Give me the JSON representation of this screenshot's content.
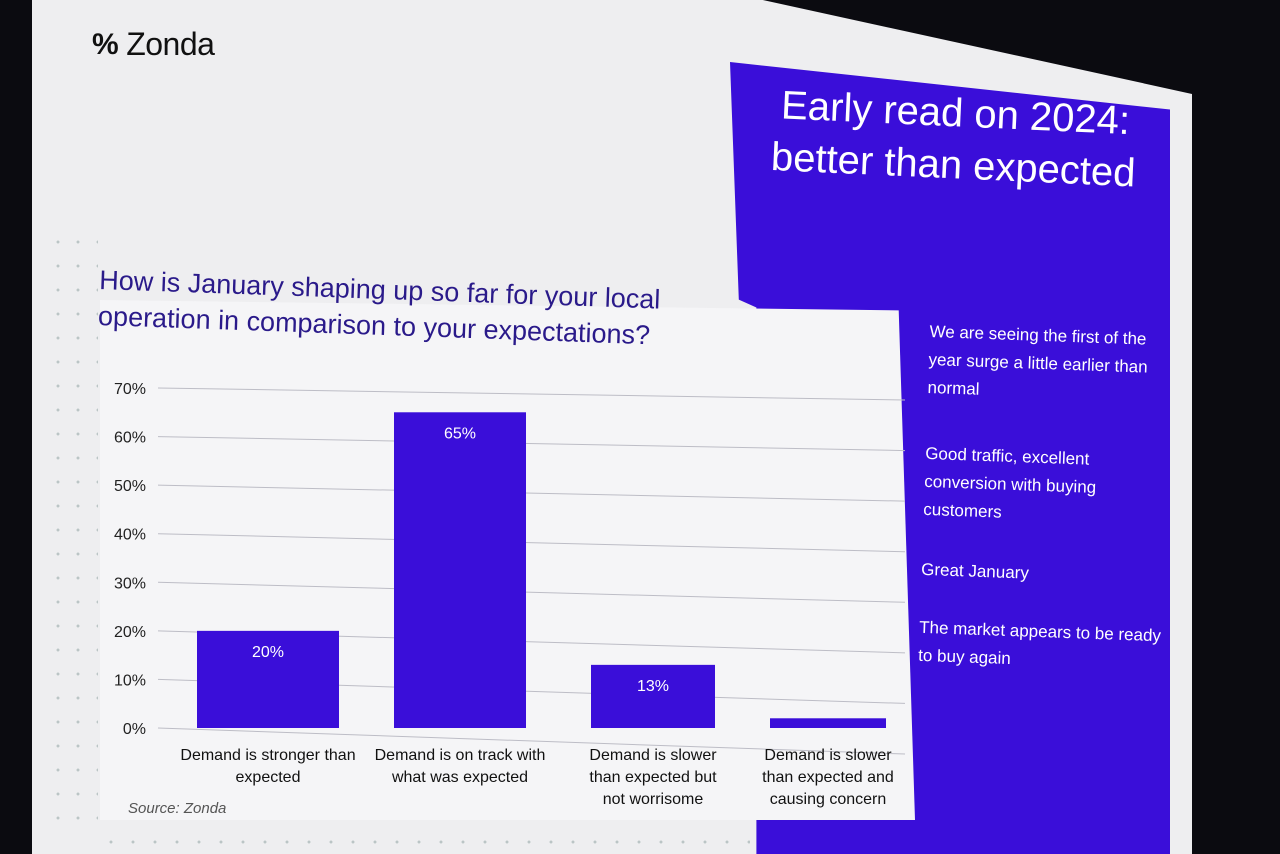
{
  "logo": {
    "mark": "%",
    "text": "Zonda"
  },
  "headline": "Early read on 2024: better than expected",
  "source": "Source: Zonda",
  "quotes": [
    "We are seeing the first of the year surge a little earlier than normal",
    "Good traffic, excellent conversion with buying customers",
    "Great January",
    "The market appears to be ready to buy again"
  ],
  "colors": {
    "accent": "#3a0ed9",
    "grid": "#bdbdc6"
  },
  "chart_data": {
    "type": "bar",
    "title": "How is January shaping up so far for your local operation in comparison to your expectations?",
    "categories": [
      "Demand is stronger than expected",
      "Demand is on track with what was expected",
      "Demand is slower than expected but not worrisome",
      "Demand is slower than expected and causing concern"
    ],
    "values": [
      20,
      65,
      13,
      2
    ],
    "data_labels": [
      "20%",
      "65%",
      "13%",
      ""
    ],
    "yticks": [
      "0%",
      "10%",
      "20%",
      "30%",
      "40%",
      "50%",
      "60%",
      "70%"
    ],
    "ylim": [
      0,
      70
    ],
    "grid": true
  }
}
